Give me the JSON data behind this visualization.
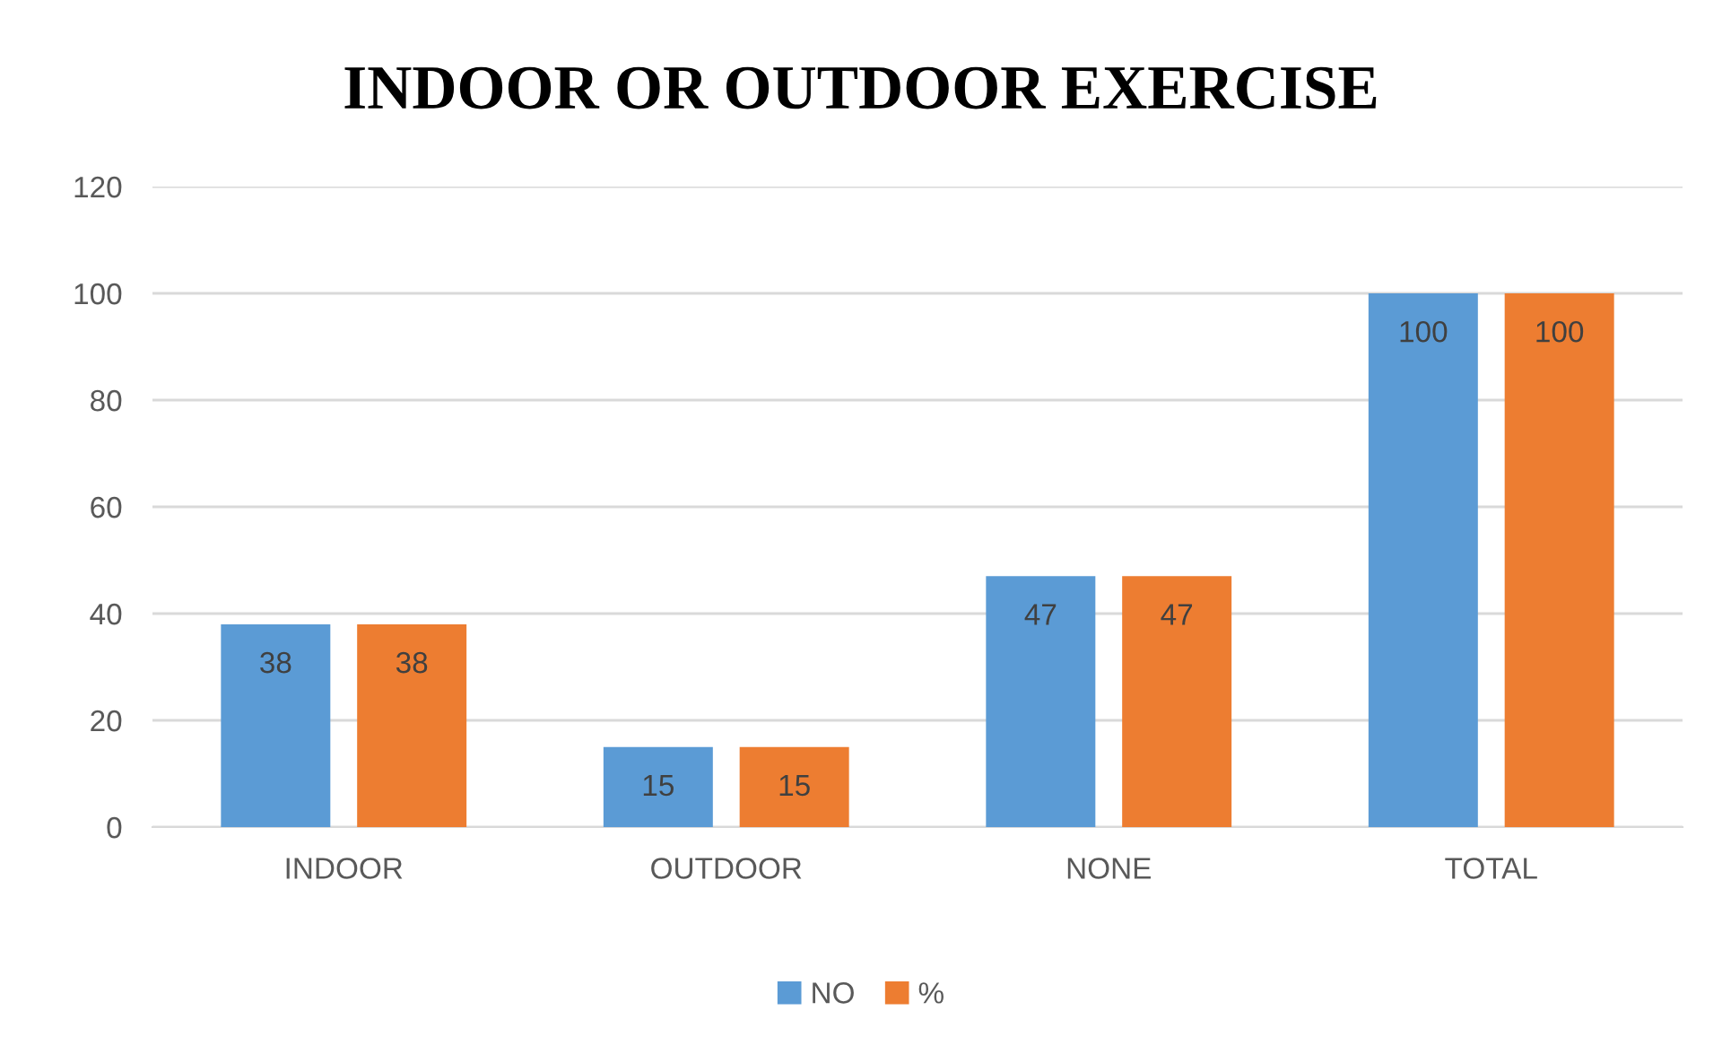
{
  "chart_data": {
    "type": "bar",
    "title": "INDOOR OR OUTDOOR EXERCISE",
    "categories": [
      "INDOOR",
      "OUTDOOR",
      "NONE",
      "TOTAL"
    ],
    "series": [
      {
        "name": "NO",
        "color": "#5b9bd5",
        "values": [
          38,
          15,
          47,
          100
        ]
      },
      {
        "name": "%",
        "color": "#ed7d31",
        "values": [
          38,
          15,
          47,
          100
        ]
      }
    ],
    "ylim": [
      0,
      120
    ],
    "yticks": [
      0,
      20,
      40,
      60,
      80,
      100,
      120
    ],
    "grid": "y",
    "legend": "bottom",
    "data_labels": true
  }
}
